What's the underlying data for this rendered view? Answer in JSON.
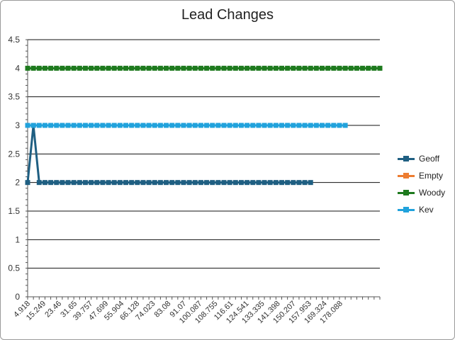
{
  "chart_data": {
    "type": "line",
    "title": "Lead Changes",
    "xlabel": "",
    "ylabel": "",
    "ylim": [
      0,
      4.5
    ],
    "yticks": [
      "0",
      "0.5",
      "1",
      "1.5",
      "2",
      "2.5",
      "3",
      "3.5",
      "4",
      "4.5"
    ],
    "x_tick_labels": [
      "4.918",
      "15.249",
      "23.46",
      "31.65",
      "39.757",
      "47.699",
      "55.904",
      "66.128",
      "74.023",
      "83.08",
      "91.07",
      "100.087",
      "108.755",
      "116.61",
      "124.541",
      "133.335",
      "141.398",
      "150.207",
      "157.953",
      "169.324",
      "178.088"
    ],
    "category_count": 62,
    "grid": true,
    "legend_position": "right",
    "series": [
      {
        "name": "Geoff",
        "color": "#1f5f82",
        "values": [
          2,
          3,
          2,
          2,
          2,
          2,
          2,
          2,
          2,
          2,
          2,
          2,
          2,
          2,
          2,
          2,
          2,
          2,
          2,
          2,
          2,
          2,
          2,
          2,
          2,
          2,
          2,
          2,
          2,
          2,
          2,
          2,
          2,
          2,
          2,
          2,
          2,
          2,
          2,
          2,
          2,
          2,
          2,
          2,
          2,
          2,
          2,
          2,
          2,
          2
        ]
      },
      {
        "name": "Empty",
        "color": "#ed7d31",
        "values": []
      },
      {
        "name": "Woody",
        "color": "#1e7a1e",
        "values": [
          4,
          4,
          4,
          4,
          4,
          4,
          4,
          4,
          4,
          4,
          4,
          4,
          4,
          4,
          4,
          4,
          4,
          4,
          4,
          4,
          4,
          4,
          4,
          4,
          4,
          4,
          4,
          4,
          4,
          4,
          4,
          4,
          4,
          4,
          4,
          4,
          4,
          4,
          4,
          4,
          4,
          4,
          4,
          4,
          4,
          4,
          4,
          4,
          4,
          4,
          4,
          4,
          4,
          4,
          4,
          4,
          4,
          4,
          4,
          4,
          4,
          4
        ]
      },
      {
        "name": "Kev",
        "color": "#21a2dc",
        "values": [
          3,
          3,
          3,
          3,
          3,
          3,
          3,
          3,
          3,
          3,
          3,
          3,
          3,
          3,
          3,
          3,
          3,
          3,
          3,
          3,
          3,
          3,
          3,
          3,
          3,
          3,
          3,
          3,
          3,
          3,
          3,
          3,
          3,
          3,
          3,
          3,
          3,
          3,
          3,
          3,
          3,
          3,
          3,
          3,
          3,
          3,
          3,
          3,
          3,
          3,
          3,
          3,
          3,
          3,
          3,
          3
        ]
      }
    ]
  }
}
